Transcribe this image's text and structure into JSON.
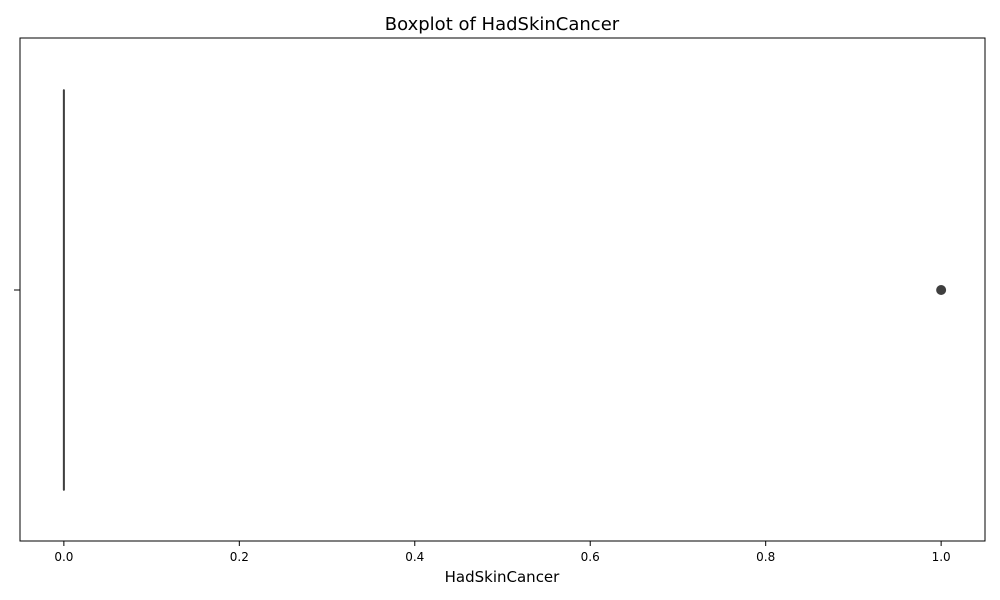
{
  "chart_data": {
    "type": "boxplot",
    "title": "Boxplot of HadSkinCancer",
    "xlabel": "HadSkinCancer",
    "ylabel": "",
    "xlim": [
      -0.05,
      1.05
    ],
    "x_ticks": [
      0.0,
      0.2,
      0.4,
      0.6,
      0.8,
      1.0
    ],
    "x_tick_labels": [
      "0.0",
      "0.2",
      "0.4",
      "0.6",
      "0.8",
      "1.0"
    ],
    "orientation": "horizontal",
    "grid": false,
    "legend": "none",
    "box": {
      "min": 0.0,
      "q1": 0.0,
      "median": 0.0,
      "q3": 0.0,
      "max": 0.0,
      "outliers": [
        1.0
      ]
    },
    "colors": {
      "box_line": "#3f3f3f",
      "outlier": "#3f3f3f",
      "axis": "#000000"
    }
  }
}
